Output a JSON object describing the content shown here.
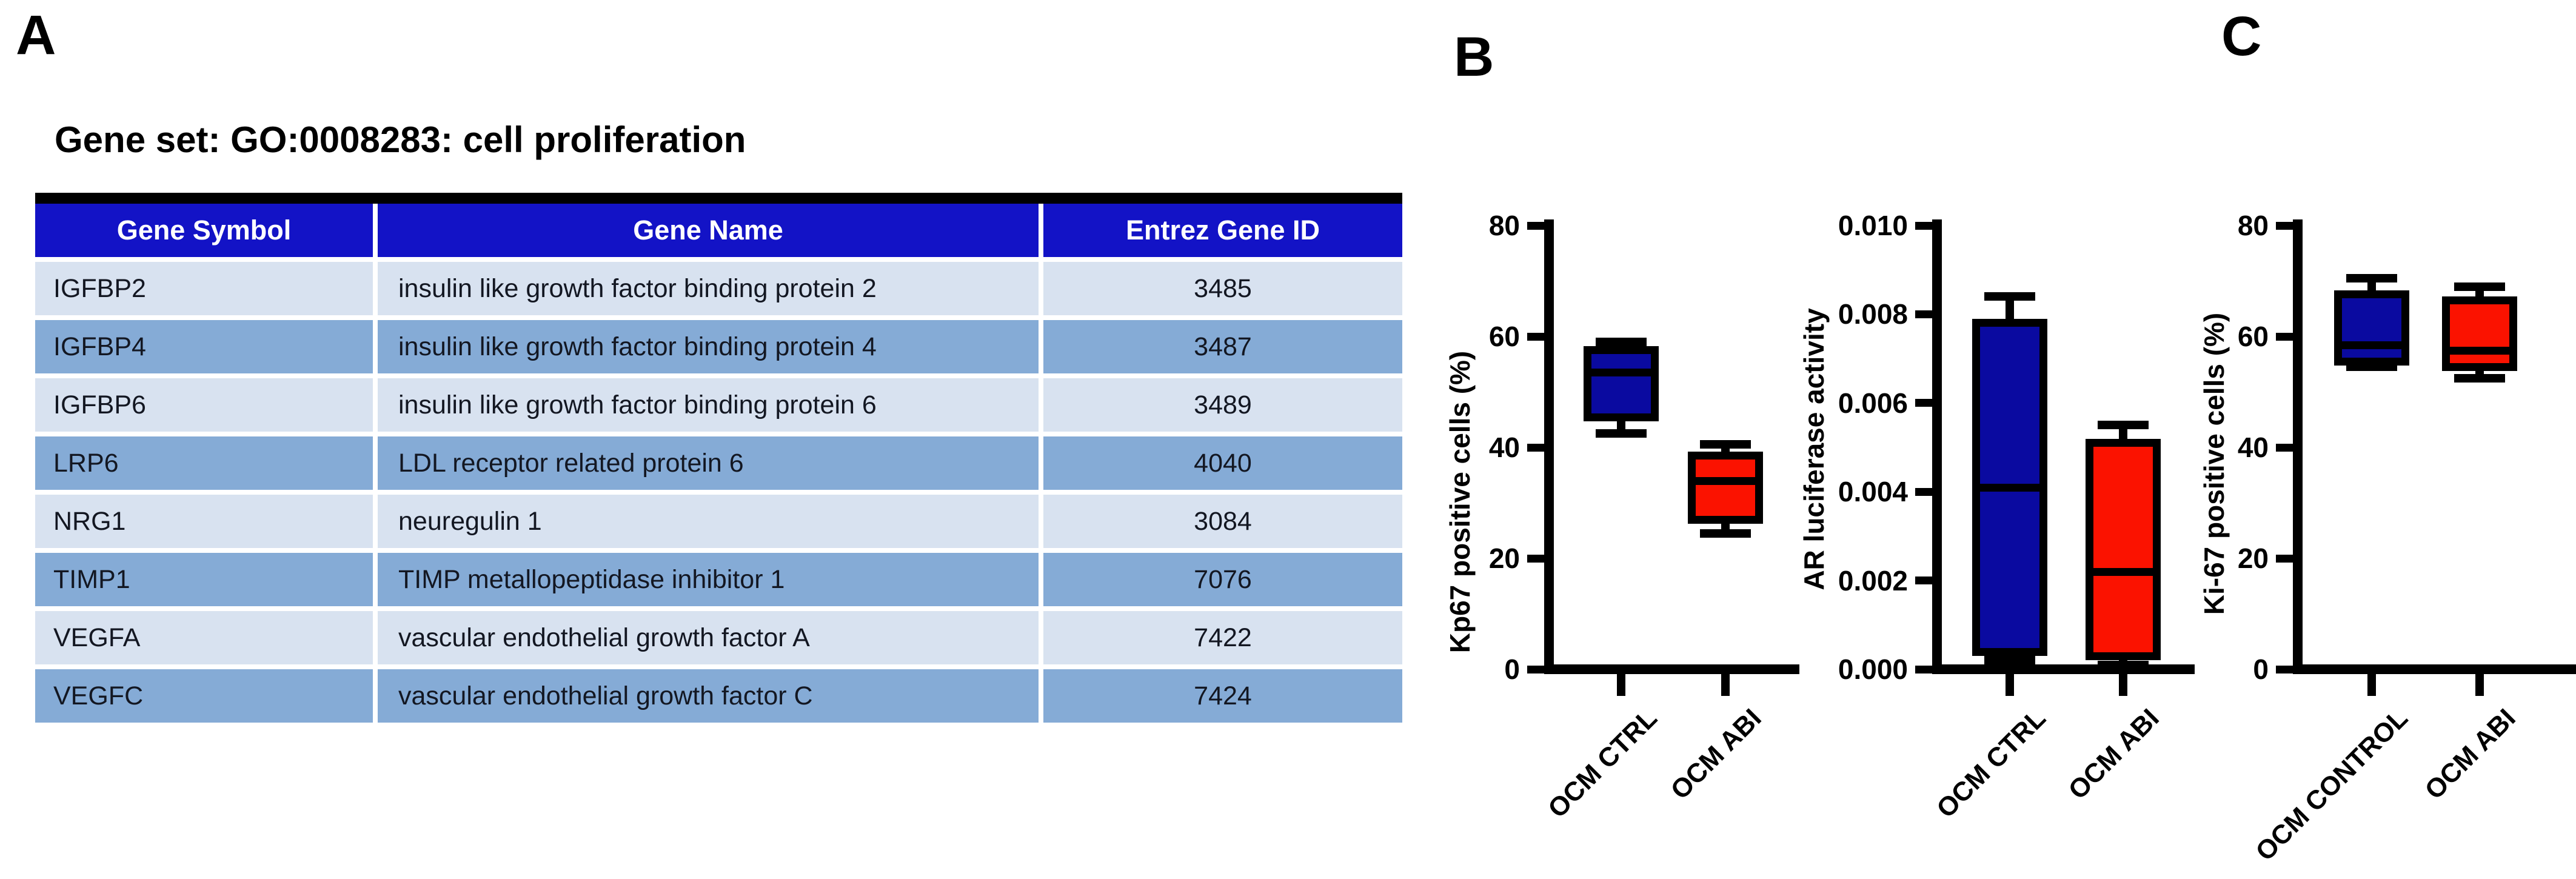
{
  "panels": {
    "a": {
      "letter": "A",
      "title": "Gene set: GO:0008283: cell proliferation",
      "table": {
        "columns": [
          "Gene Symbol",
          "Gene Name",
          "Entrez Gene ID"
        ],
        "rows": [
          [
            "IGFBP2",
            "insulin like growth factor binding protein 2",
            "3485"
          ],
          [
            "IGFBP4",
            "insulin like growth factor binding protein 4",
            "3487"
          ],
          [
            "IGFBP6",
            "insulin like growth factor binding protein 6",
            "3489"
          ],
          [
            "LRP6",
            "LDL receptor related protein 6",
            "4040"
          ],
          [
            "NRG1",
            "neuregulin 1",
            "3084"
          ],
          [
            "TIMP1",
            "TIMP metallopeptidase inhibitor 1",
            "7076"
          ],
          [
            "VEGFA",
            "vascular endothelial growth factor A",
            "7422"
          ],
          [
            "VEGFC",
            "vascular endothelial growth factor C",
            "7424"
          ]
        ]
      }
    },
    "b": {
      "letter": "B"
    },
    "c": {
      "letter": "C"
    }
  },
  "colors": {
    "header_blue": "#1313c6",
    "row_light": "#d8e2f0",
    "row_dark": "#85abd6",
    "box_blue": "#0a0aa0",
    "box_red": "#fb1200",
    "axis_black": "#000000",
    "header_text": "#ffffff",
    "body_text": "#131722"
  },
  "chart_data": [
    {
      "id": "kp67",
      "panel": "B",
      "type": "box",
      "ylabel": "Kp67 positive cells (%)",
      "ylim": [
        0,
        80
      ],
      "yticks": [
        0,
        20,
        40,
        60,
        80
      ],
      "ytick_labels": [
        "0",
        "20",
        "40",
        "60",
        "80"
      ],
      "categories": [
        "OCM CTRL",
        "OCM ABI"
      ],
      "grid": false,
      "series": [
        {
          "name": "OCM CTRL",
          "color": "#0a0aa0",
          "min": 42.5,
          "q1": 45.5,
          "median": 53.5,
          "q3": 57.5,
          "max": 59
        },
        {
          "name": "OCM ABI",
          "color": "#fb1200",
          "min": 24.5,
          "q1": 27,
          "median": 34,
          "q3": 38.5,
          "max": 40.5
        }
      ]
    },
    {
      "id": "ar-luciferase",
      "panel": "B",
      "type": "box",
      "ylabel": "AR luciferase activity",
      "ylim": [
        0,
        0.01
      ],
      "yticks": [
        0,
        0.002,
        0.004,
        0.006,
        0.008,
        0.01
      ],
      "ytick_labels": [
        "0.000",
        "0.002",
        "0.004",
        "0.006",
        "0.008",
        "0.010"
      ],
      "categories": [
        "OCM CTRL",
        "OCM ABI"
      ],
      "grid": false,
      "series": [
        {
          "name": "OCM CTRL",
          "color": "#0a0aa0",
          "min": 0.0002,
          "q1": 0.0004,
          "median": 0.0041,
          "q3": 0.0078,
          "max": 0.0084
        },
        {
          "name": "OCM ABI",
          "color": "#fb1200",
          "min": 0.0001,
          "q1": 0.0003,
          "median": 0.0022,
          "q3": 0.0051,
          "max": 0.0055
        }
      ]
    },
    {
      "id": "ki67",
      "panel": "C",
      "type": "box",
      "ylabel": "Ki-67 positive cells (%)",
      "ylim": [
        0,
        80
      ],
      "yticks": [
        0,
        20,
        40,
        60,
        80
      ],
      "ytick_labels": [
        "0",
        "20",
        "40",
        "60",
        "80"
      ],
      "categories": [
        "OCM CONTROL",
        "OCM ABI"
      ],
      "grid": false,
      "series": [
        {
          "name": "OCM CONTROL",
          "color": "#0a0aa0",
          "min": 54.5,
          "q1": 55.5,
          "median": 58.5,
          "q3": 67.5,
          "max": 70.5
        },
        {
          "name": "OCM ABI",
          "color": "#fb1200",
          "min": 52.5,
          "q1": 54.5,
          "median": 57.5,
          "q3": 66.5,
          "max": 69
        }
      ]
    }
  ]
}
